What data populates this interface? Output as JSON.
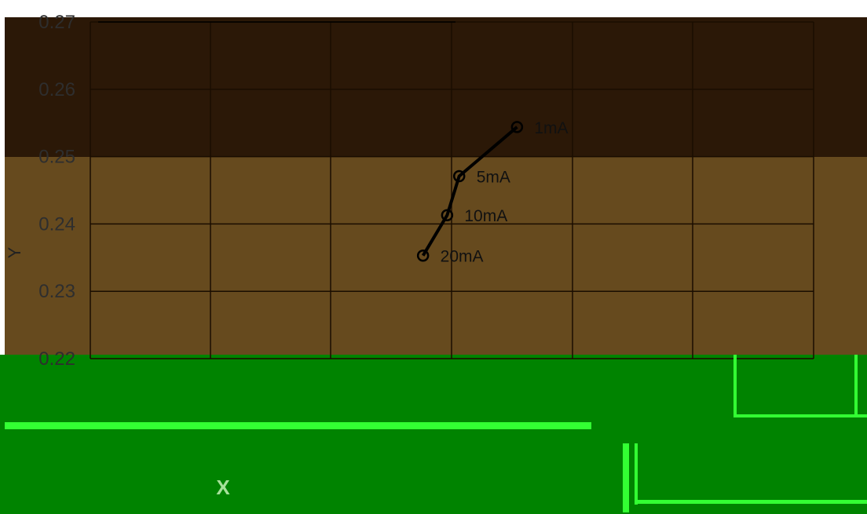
{
  "chart_data": {
    "type": "line",
    "xlabel": "X",
    "ylabel": "Y",
    "xlim": [
      0.245,
      0.275
    ],
    "ylim": [
      0.22,
      0.27
    ],
    "y_ticks": [
      "0.27",
      "0.26",
      "0.25",
      "0.24",
      "0.23",
      "0.22"
    ],
    "grid": true,
    "series": [
      {
        "points": [
          {
            "x": 0.2627,
            "y": 0.2544,
            "label": "1mA"
          },
          {
            "x": 0.2603,
            "y": 0.2471,
            "label": "5mA"
          },
          {
            "x": 0.2598,
            "y": 0.2413,
            "label": "10mA"
          },
          {
            "x": 0.2588,
            "y": 0.2353,
            "label": "20mA"
          }
        ]
      }
    ]
  },
  "colors": {
    "top_band": "#2b1807",
    "mid_band": "#664a1e",
    "bottom_band": "#008300",
    "bright_green": "#33ff33",
    "grid_line": "#1a0d00",
    "series_line": "#000000",
    "marker_fill": "#664a1e"
  }
}
